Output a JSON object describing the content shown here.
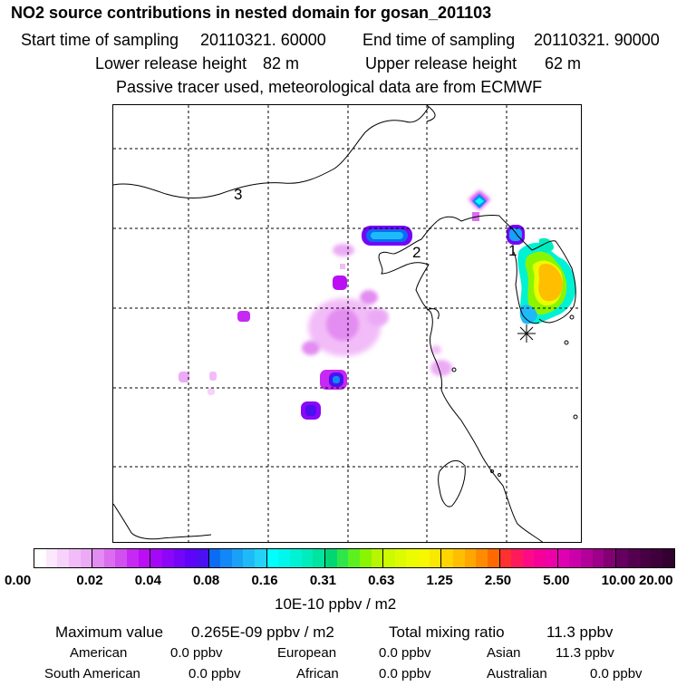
{
  "title": "NO2 source contributions in nested domain for gosan_201103",
  "sampling": {
    "start_label": "Start time of sampling",
    "start_value": "20110321. 60000",
    "end_label": "End time of sampling",
    "end_value": "20110321. 90000"
  },
  "release": {
    "lower_label": "Lower release height",
    "lower_value": "82 m",
    "upper_label": "Upper release height",
    "upper_value": "62 m"
  },
  "note": "Passive tracer used, meteorological data are from ECMWF",
  "map": {
    "region_labels": [
      "3",
      "2",
      "1"
    ]
  },
  "colorbar": {
    "ticks": [
      "0.00",
      "0.02",
      "0.04",
      "0.08",
      "0.16",
      "0.31",
      "0.63",
      "1.25",
      "2.50",
      "5.00",
      "10.00",
      "20.00"
    ],
    "units": "10E-10 ppbv / m2",
    "segments": [
      [
        "#ffffff",
        "#fbe8fd",
        "#f7d2fb",
        "#f2bcf8",
        "#ecaaf6"
      ],
      [
        "#e38cf1",
        "#db6eee",
        "#d24ff0",
        "#c629f3",
        "#bb0ef5"
      ],
      [
        "#a408f6",
        "#8c06f8",
        "#7405f9",
        "#5e04f8",
        "#4a10f0"
      ],
      [
        "#0a6cf4",
        "#1288f6",
        "#19a0f7",
        "#1ebaf8",
        "#23d2f6"
      ],
      [
        "#00ffff",
        "#00f8ec",
        "#00f2d5",
        "#00ecbc",
        "#00e4a0"
      ],
      [
        "#00d774",
        "#2ee64a",
        "#5cf021",
        "#8af500",
        "#b8f500"
      ],
      [
        "#ccfa00",
        "#dcfb00",
        "#ebfc00",
        "#f6f800",
        "#fbe800"
      ],
      [
        "#ffd400",
        "#ffbe00",
        "#ffa600",
        "#ff8c00",
        "#ff6a00"
      ],
      [
        "#ff3030",
        "#ff1a5c",
        "#ff0a86",
        "#f7009a",
        "#ee00a8"
      ],
      [
        "#e000b4",
        "#cc00aa",
        "#b4009a",
        "#9c0088",
        "#820072"
      ],
      [
        "#660060",
        "#55004f",
        "#480045",
        "#3e003a",
        "#330030"
      ]
    ]
  },
  "stats": {
    "max_label": "Maximum value",
    "max_value": "0.265E-09 ppbv / m2",
    "total_label": "Total mixing ratio",
    "total_value": "11.3 ppbv",
    "american_label": "American",
    "american_value": "0.0 ppbv",
    "european_label": "European",
    "european_value": "0.0 ppbv",
    "asian_label": "Asian",
    "asian_value": "11.3 ppbv",
    "south_american_label": "South American",
    "south_american_value": "0.0 ppbv",
    "african_label": "African",
    "african_value": "0.0 ppbv",
    "australian_label": "Australian",
    "australian_value": "0.0 ppbv"
  }
}
